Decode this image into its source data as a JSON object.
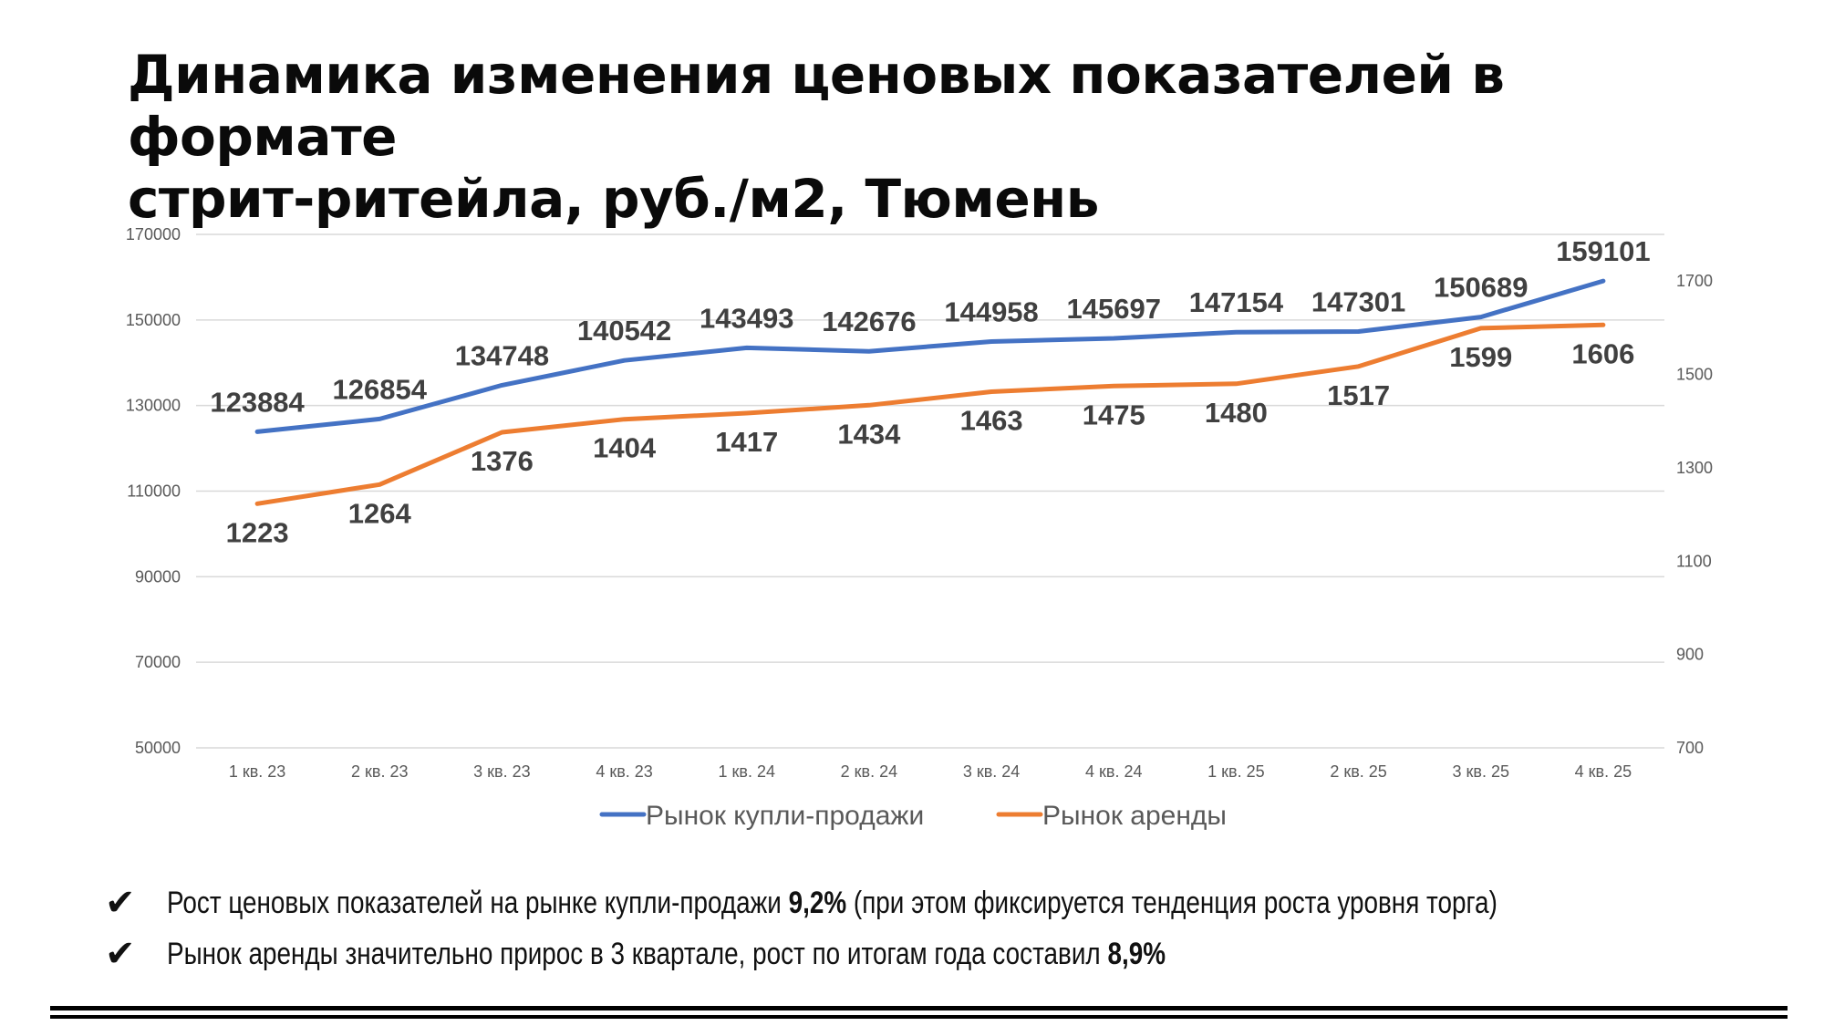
{
  "page": {
    "title_line1": "Динамика изменения ценовых показателей в формате",
    "title_line2": "стрит-ритейла, руб./м2, Тюмень",
    "bullets": [
      {
        "pre": "Рост ценовых показателей на рынке купли-продажи ",
        "bold": "9,2%",
        "post": " (при этом фиксируется тенденция роста уровня торга)"
      },
      {
        "pre": "Рынок аренды значительно прирос в 3 квартале, рост по итогам года составил ",
        "bold": "8,9%",
        "post": ""
      }
    ],
    "check_icon": "checkmark-icon"
  },
  "chart_data": {
    "type": "line",
    "categories": [
      "1 кв. 23",
      "2 кв. 23",
      "3 кв. 23",
      "4 кв. 23",
      "1 кв. 24",
      "2 кв. 24",
      "3 кв. 24",
      "4 кв. 24",
      "1 кв. 25",
      "2 кв. 25",
      "3 кв. 25",
      "4 кв. 25"
    ],
    "y_left": {
      "min": 50000,
      "max": 170000,
      "ticks": [
        50000,
        70000,
        90000,
        110000,
        130000,
        150000,
        170000
      ]
    },
    "y_right": {
      "min": 700,
      "max": 1800,
      "ticks": [
        700,
        900,
        1100,
        1300,
        1500,
        1700
      ]
    },
    "grid": true,
    "legend_position": "bottom",
    "series": [
      {
        "name": "Рынок купли-продажи",
        "axis": "left",
        "color": "#4472C4",
        "values": [
          123884,
          126854,
          134748,
          140542,
          143493,
          142676,
          144958,
          145697,
          147154,
          147301,
          150689,
          159101
        ]
      },
      {
        "name": "Рынок аренды",
        "axis": "right",
        "color": "#ED7D31",
        "values": [
          1223,
          1264,
          1376,
          1404,
          1417,
          1434,
          1463,
          1475,
          1480,
          1517,
          1599,
          1606
        ]
      }
    ]
  }
}
